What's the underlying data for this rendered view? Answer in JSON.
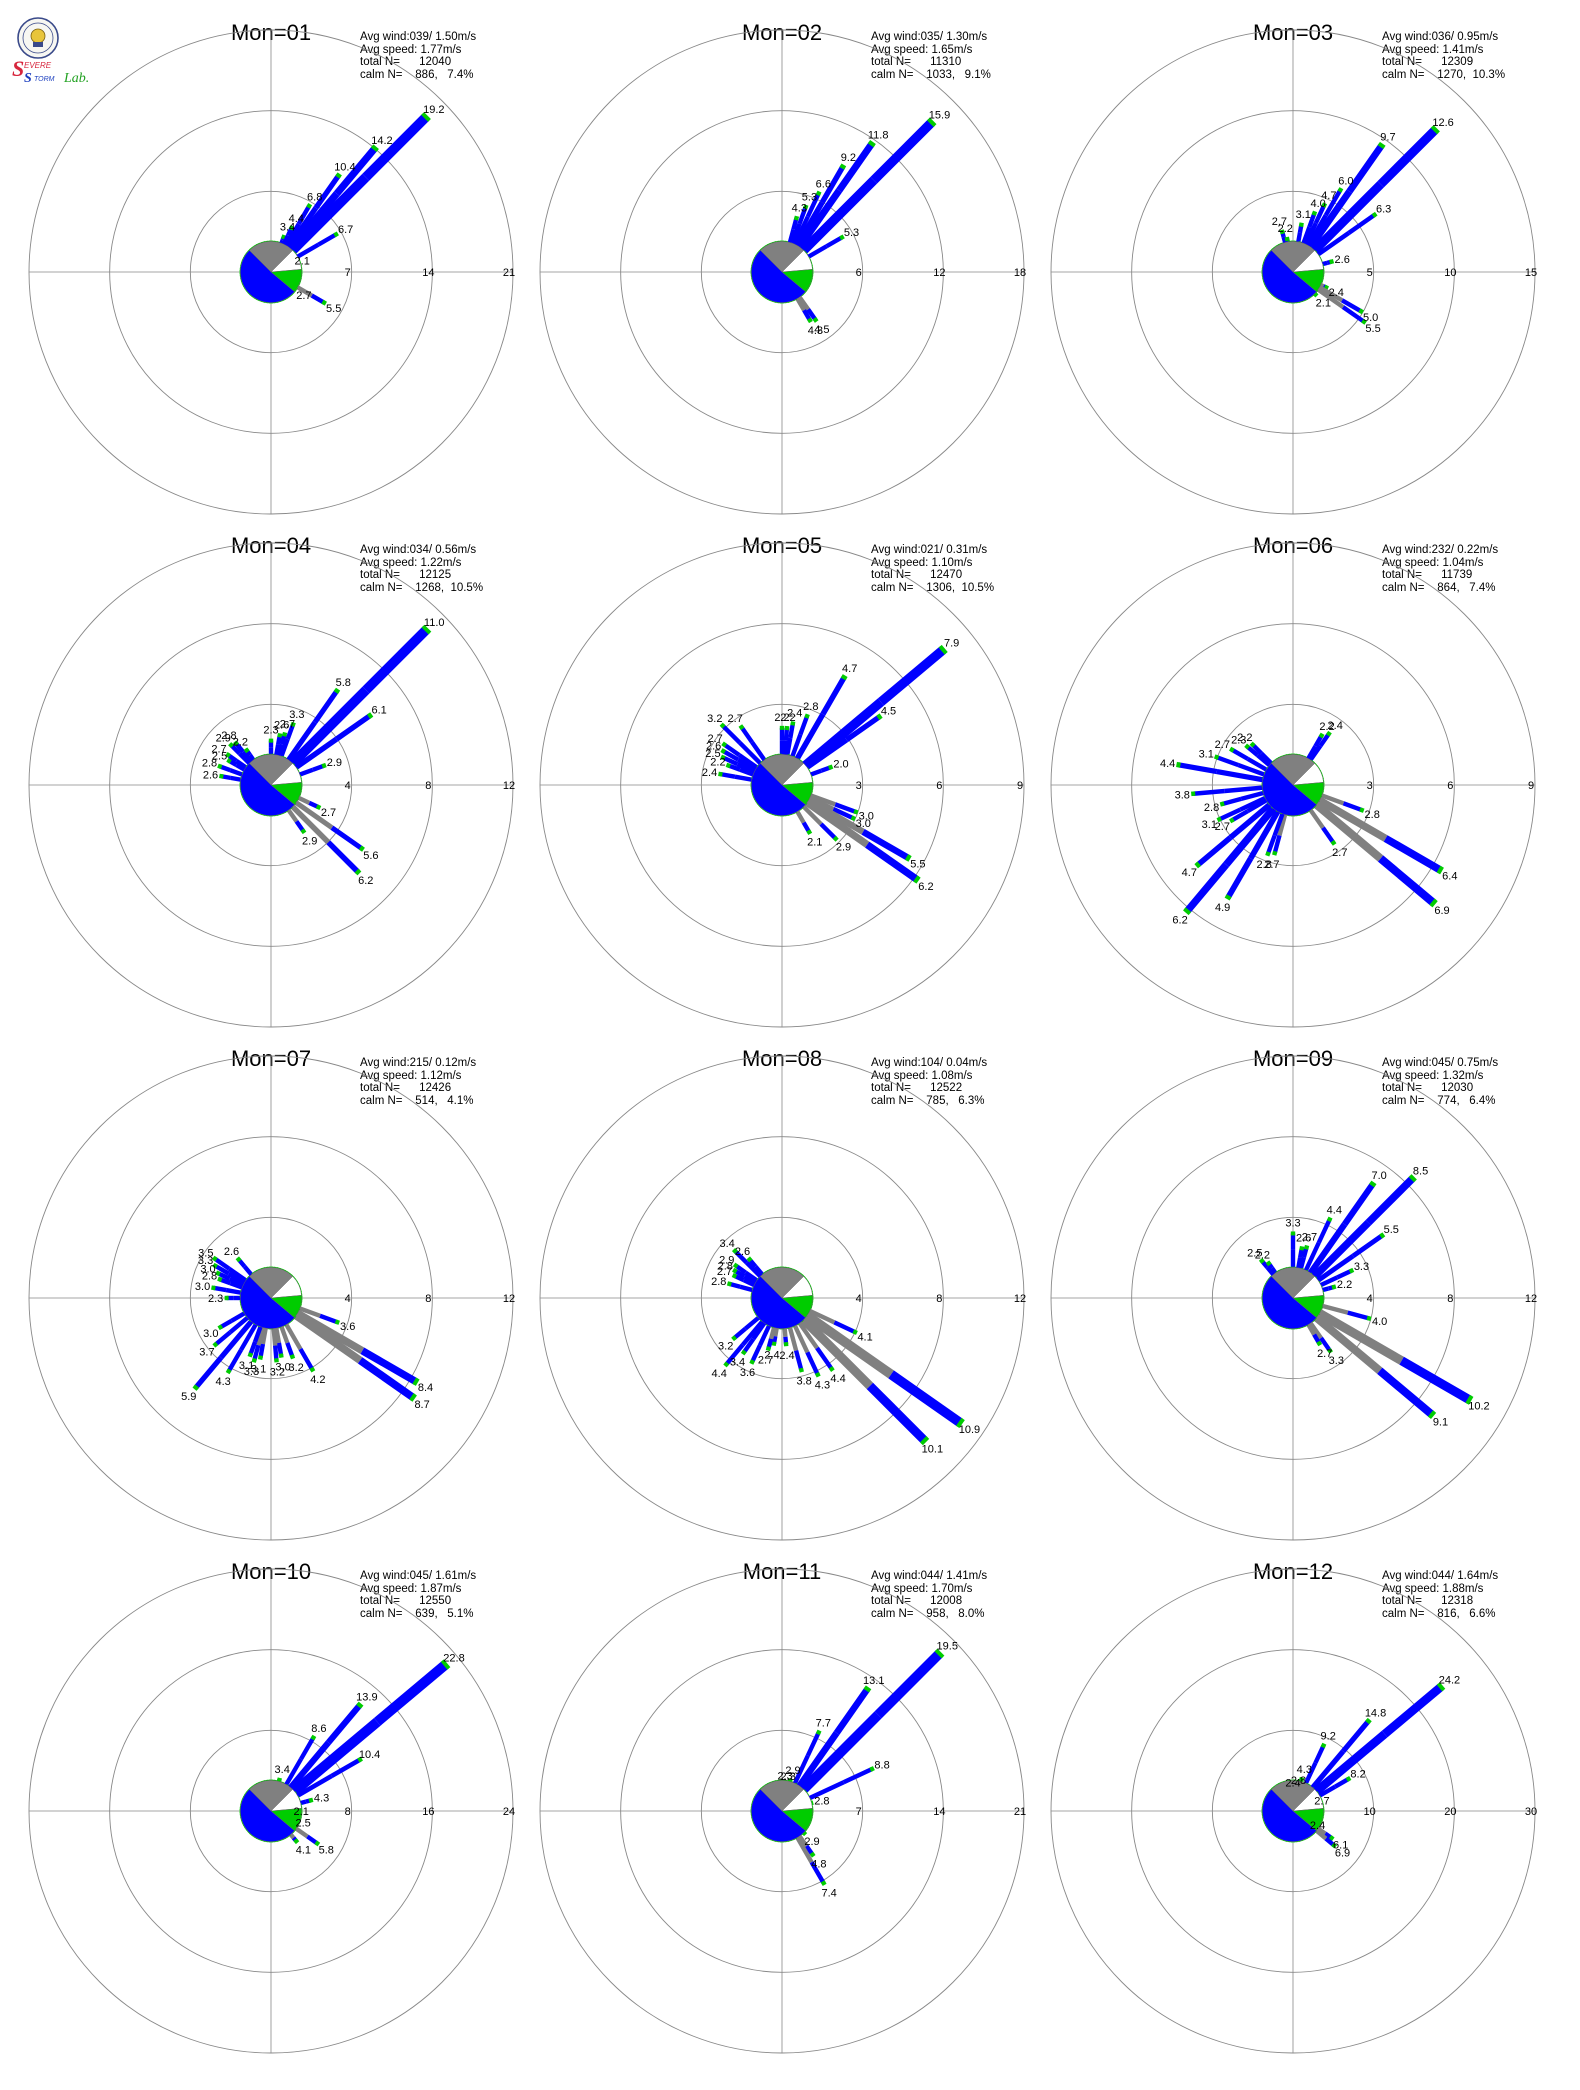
{
  "logo": {
    "text_main": "Severe Storm",
    "text_lab": "Lab.",
    "colors": {
      "s": "#d7263d",
      "storm": "#1c3fbf",
      "lab": "#21a121"
    }
  },
  "stat_labels": {
    "avg_wind": "Avg wind:",
    "avg_speed": "Avg speed:",
    "total": "total N=",
    "calm": "calm N="
  },
  "colors": {
    "calm_slice": "#808080",
    "blue": "#0000ff",
    "green": "#00cc00",
    "orange": "#ff7f2a",
    "gray": "#808080",
    "grid": "#888888"
  },
  "chart_data": [
    {
      "type": "polar-bar",
      "title": "Mon=01",
      "avg_wind": "039/ 1.50m/s",
      "avg_speed": "1.77m/s",
      "total_n": "12040",
      "calm": "886,   7.4%",
      "rings": [
        "7",
        "14",
        "21"
      ],
      "rmax": 21,
      "labeled": [
        [
          20,
          "3.4"
        ],
        [
          25,
          "4.4"
        ],
        [
          30,
          "6.8"
        ],
        [
          35,
          "10.4"
        ],
        [
          40,
          "14.2"
        ],
        [
          45,
          "19.2"
        ],
        [
          60,
          "6.7"
        ],
        [
          70,
          "2.1"
        ],
        [
          120,
          "5.5"
        ],
        [
          125,
          "2.7"
        ]
      ]
    },
    {
      "type": "polar-bar",
      "title": "Mon=02",
      "avg_wind": "035/ 1.30m/s",
      "avg_speed": "1.65m/s",
      "total_n": "11310",
      "calm": "1033,   9.1%",
      "rings": [
        "6",
        "12",
        "18"
      ],
      "rmax": 18,
      "labeled": [
        [
          15,
          "4.3"
        ],
        [
          20,
          "5.3"
        ],
        [
          25,
          "6.6"
        ],
        [
          30,
          "9.2"
        ],
        [
          35,
          "11.8"
        ],
        [
          45,
          "15.9"
        ],
        [
          60,
          "5.3"
        ],
        [
          145,
          "4.5"
        ],
        [
          150,
          "4.3"
        ]
      ]
    },
    {
      "type": "polar-bar",
      "title": "Mon=03",
      "avg_wind": "036/ 0.95m/s",
      "avg_speed": "1.41m/s",
      "total_n": "12309",
      "calm": "1270,  10.3%",
      "rings": [
        "5",
        "10",
        "15"
      ],
      "rmax": 15,
      "labeled": [
        [
          -15,
          "2.7"
        ],
        [
          -10,
          "2.2"
        ],
        [
          10,
          "3.1"
        ],
        [
          20,
          "4.0"
        ],
        [
          25,
          "4.7"
        ],
        [
          30,
          "6.0"
        ],
        [
          35,
          "9.7"
        ],
        [
          45,
          "12.6"
        ],
        [
          55,
          "6.3"
        ],
        [
          75,
          "2.6"
        ],
        [
          115,
          "2.4"
        ],
        [
          120,
          "5.0"
        ],
        [
          125,
          "5.5"
        ],
        [
          135,
          "2.1"
        ]
      ]
    },
    {
      "type": "polar-bar",
      "title": "Mon=04",
      "avg_wind": "034/ 0.56m/s",
      "avg_speed": "1.22m/s",
      "total_n": "12125",
      "calm": "1268,  10.5%",
      "rings": [
        "4",
        "8",
        "12"
      ],
      "rmax": 12,
      "labeled": [
        [
          -40,
          "2.8"
        ],
        [
          -45,
          "2.9"
        ],
        [
          -55,
          "2.7"
        ],
        [
          -60,
          "2.5"
        ],
        [
          -70,
          "2.8"
        ],
        [
          -80,
          "2.6"
        ],
        [
          -35,
          "2.2"
        ],
        [
          0,
          "2.3"
        ],
        [
          10,
          "2.6"
        ],
        [
          15,
          "2.7"
        ],
        [
          20,
          "3.3"
        ],
        [
          35,
          "5.8"
        ],
        [
          45,
          "11.0"
        ],
        [
          55,
          "6.1"
        ],
        [
          70,
          "2.9"
        ],
        [
          115,
          "2.7"
        ],
        [
          125,
          "5.6"
        ],
        [
          135,
          "6.2"
        ],
        [
          145,
          "2.9"
        ]
      ]
    },
    {
      "type": "polar-bar",
      "title": "Mon=05",
      "avg_wind": "021/ 0.31m/s",
      "avg_speed": "1.10m/s",
      "total_n": "12470",
      "calm": "1306,  10.5%",
      "rings": [
        "3",
        "6",
        "9"
      ],
      "rmax": 9,
      "labeled": [
        [
          -35,
          "2.7"
        ],
        [
          -45,
          "3.2"
        ],
        [
          -55,
          "2.7"
        ],
        [
          -60,
          "2.6"
        ],
        [
          -65,
          "2.5"
        ],
        [
          -70,
          "2.2"
        ],
        [
          -80,
          "2.4"
        ],
        [
          0,
          "2.2"
        ],
        [
          5,
          "2.2"
        ],
        [
          10,
          "2.4"
        ],
        [
          20,
          "2.8"
        ],
        [
          30,
          "4.7"
        ],
        [
          50,
          "7.9"
        ],
        [
          55,
          "4.5"
        ],
        [
          70,
          "2.0"
        ],
        [
          110,
          "3.0"
        ],
        [
          115,
          "3.0"
        ],
        [
          120,
          "5.5"
        ],
        [
          125,
          "6.2"
        ],
        [
          135,
          "2.9"
        ],
        [
          150,
          "2.1"
        ]
      ]
    },
    {
      "type": "polar-bar",
      "title": "Mon=06",
      "avg_wind": "232/ 0.22m/s",
      "avg_speed": "1.04m/s",
      "total_n": "11739",
      "calm": "864,   7.4%",
      "rings": [
        "3",
        "6",
        "9"
      ],
      "rmax": 9,
      "labeled": [
        [
          -80,
          "4.4"
        ],
        [
          -70,
          "3.1"
        ],
        [
          -60,
          "2.7"
        ],
        [
          -50,
          "2.3"
        ],
        [
          -45,
          "2.2"
        ],
        [
          -95,
          "3.8"
        ],
        [
          -105,
          "2.8"
        ],
        [
          -115,
          "3.1"
        ],
        [
          -120,
          "2.7"
        ],
        [
          -130,
          "4.7"
        ],
        [
          -140,
          "6.2"
        ],
        [
          -150,
          "4.9"
        ],
        [
          -160,
          "2.8"
        ],
        [
          -165,
          "2.7"
        ],
        [
          145,
          "2.7"
        ],
        [
          30,
          "2.2"
        ],
        [
          35,
          "2.4"
        ],
        [
          110,
          "2.8"
        ],
        [
          120,
          "6.4"
        ],
        [
          130,
          "6.9"
        ]
      ]
    },
    {
      "type": "polar-bar",
      "title": "Mon=07",
      "avg_wind": "215/ 0.12m/s",
      "avg_speed": "1.12m/s",
      "total_n": "12426",
      "calm": "514,   4.1%",
      "rings": [
        "4",
        "8",
        "12"
      ],
      "rmax": 12,
      "labeled": [
        [
          -40,
          "2.6"
        ],
        [
          -55,
          "3.5"
        ],
        [
          -60,
          "3.3"
        ],
        [
          -65,
          "3.0"
        ],
        [
          -70,
          "2.8"
        ],
        [
          -80,
          "3.0"
        ],
        [
          -90,
          "2.3"
        ],
        [
          -120,
          "3.0"
        ],
        [
          -130,
          "3.7"
        ],
        [
          -140,
          "5.9"
        ],
        [
          -150,
          "4.3"
        ],
        [
          -160,
          "3.1"
        ],
        [
          -165,
          "3.3"
        ],
        [
          -170,
          "3.1"
        ],
        [
          175,
          "3.2"
        ],
        [
          170,
          "3.0"
        ],
        [
          160,
          "3.2"
        ],
        [
          150,
          "4.2"
        ],
        [
          110,
          "3.6"
        ],
        [
          120,
          "8.4"
        ],
        [
          125,
          "8.7"
        ]
      ]
    },
    {
      "type": "polar-bar",
      "title": "Mon=08",
      "avg_wind": "104/ 0.04m/s",
      "avg_speed": "1.08m/s",
      "total_n": "12522",
      "calm": "785,   6.3%",
      "rings": [
        "4",
        "8",
        "12"
      ],
      "rmax": 12,
      "labeled": [
        [
          -40,
          "2.6"
        ],
        [
          -45,
          "3.4"
        ],
        [
          -55,
          "2.9"
        ],
        [
          -60,
          "2.8"
        ],
        [
          -65,
          "2.7"
        ],
        [
          -75,
          "2.8"
        ],
        [
          -130,
          "3.2"
        ],
        [
          -140,
          "4.4"
        ],
        [
          -145,
          "3.4"
        ],
        [
          -155,
          "3.6"
        ],
        [
          -165,
          "2.7"
        ],
        [
          -170,
          "2.4"
        ],
        [
          175,
          "2.4"
        ],
        [
          165,
          "3.8"
        ],
        [
          155,
          "4.3"
        ],
        [
          145,
          "4.4"
        ],
        [
          115,
          "4.1"
        ],
        [
          125,
          "10.9"
        ],
        [
          135,
          "10.1"
        ]
      ]
    },
    {
      "type": "polar-bar",
      "title": "Mon=09",
      "avg_wind": "045/ 0.75m/s",
      "avg_speed": "1.32m/s",
      "total_n": "12030",
      "calm": "774,   6.4%",
      "rings": [
        "4",
        "8",
        "12"
      ],
      "rmax": 12,
      "labeled": [
        [
          -35,
          "2.2"
        ],
        [
          -40,
          "2.5"
        ],
        [
          0,
          "3.3"
        ],
        [
          10,
          "2.6"
        ],
        [
          15,
          "2.7"
        ],
        [
          25,
          "4.4"
        ],
        [
          35,
          "7.0"
        ],
        [
          45,
          "8.5"
        ],
        [
          55,
          "5.5"
        ],
        [
          65,
          "3.3"
        ],
        [
          75,
          "2.2"
        ],
        [
          105,
          "4.0"
        ],
        [
          120,
          "10.2"
        ],
        [
          130,
          "9.1"
        ],
        [
          145,
          "3.3"
        ],
        [
          150,
          "2.7"
        ]
      ]
    },
    {
      "type": "polar-bar",
      "title": "Mon=10",
      "avg_wind": "045/ 1.61m/s",
      "avg_speed": "1.87m/s",
      "total_n": "12550",
      "calm": "639,   5.1%",
      "rings": [
        "8",
        "16",
        "24"
      ],
      "rmax": 24,
      "labeled": [
        [
          15,
          "3.4"
        ],
        [
          30,
          "8.6"
        ],
        [
          40,
          "13.9"
        ],
        [
          50,
          "22.8"
        ],
        [
          60,
          "10.4"
        ],
        [
          75,
          "4.3"
        ],
        [
          90,
          "2.1"
        ],
        [
          110,
          "2.5"
        ],
        [
          125,
          "5.8"
        ],
        [
          140,
          "4.1"
        ]
      ]
    },
    {
      "type": "polar-bar",
      "title": "Mon=11",
      "avg_wind": "044/ 1.41m/s",
      "avg_speed": "1.70m/s",
      "total_n": "12008",
      "calm": "958,   8.0%",
      "rings": [
        "7",
        "14",
        "21"
      ],
      "rmax": 21,
      "labeled": [
        [
          5,
          "2.3"
        ],
        [
          10,
          "2.3"
        ],
        [
          15,
          "2.9"
        ],
        [
          25,
          "7.7"
        ],
        [
          35,
          "13.1"
        ],
        [
          45,
          "19.5"
        ],
        [
          65,
          "8.8"
        ],
        [
          75,
          "2.8"
        ],
        [
          135,
          "2.9"
        ],
        [
          145,
          "4.8"
        ],
        [
          150,
          "7.4"
        ]
      ]
    },
    {
      "type": "polar-bar",
      "title": "Mon=12",
      "avg_wind": "044/ 1.64m/s",
      "avg_speed": "1.88m/s",
      "total_n": "12318",
      "calm": "816,   6.6%",
      "rings": [
        "10",
        "20",
        "30"
      ],
      "rmax": 30,
      "labeled": [
        [
          0,
          "2.4"
        ],
        [
          10,
          "2.8"
        ],
        [
          15,
          "4.3"
        ],
        [
          25,
          "9.2"
        ],
        [
          40,
          "14.8"
        ],
        [
          50,
          "24.2"
        ],
        [
          60,
          "8.2"
        ],
        [
          70,
          "2.7"
        ],
        [
          120,
          "2.4"
        ],
        [
          125,
          "6.1"
        ],
        [
          130,
          "6.9"
        ]
      ]
    }
  ]
}
